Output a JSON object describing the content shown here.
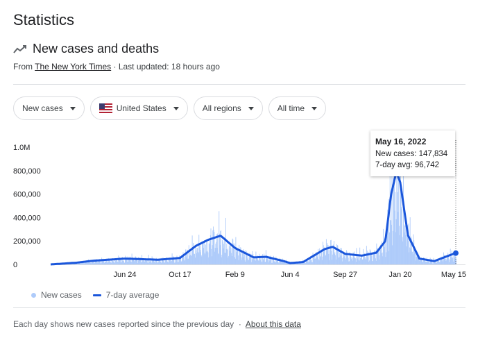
{
  "page": {
    "title": "Statistics"
  },
  "card": {
    "subtitle": "New cases and deaths",
    "source_prefix": "From ",
    "source_name": "The New York Times",
    "source_suffix": " · Last updated: 18 hours ago"
  },
  "filters": {
    "metric": "New cases",
    "country": "United States",
    "region": "All regions",
    "range": "All time"
  },
  "tooltip": {
    "date": "May 16, 2022",
    "cases": "New cases: 147,834",
    "avg": "7-day avg: 96,742"
  },
  "legend": {
    "new_cases": "New cases",
    "avg": "7-day average"
  },
  "footer": {
    "note": "Each day shows new cases reported since the previous day",
    "sep": "·",
    "link": "About this data"
  },
  "colors": {
    "bars": "#aecbfa",
    "line": "#1a56db",
    "text": "#202124"
  },
  "chart_data": {
    "type": "area",
    "x_dates": [
      "2020-01-21",
      "2020-03-15",
      "2020-04-15",
      "2020-06-24",
      "2020-09-01",
      "2020-10-17",
      "2020-11-20",
      "2020-12-15",
      "2021-01-10",
      "2021-02-09",
      "2021-03-20",
      "2021-04-15",
      "2021-05-20",
      "2021-06-04",
      "2021-07-01",
      "2021-08-15",
      "2021-09-01",
      "2021-09-27",
      "2021-11-01",
      "2021-12-01",
      "2021-12-20",
      "2022-01-01",
      "2022-01-12",
      "2022-01-20",
      "2022-02-05",
      "2022-03-01",
      "2022-04-01",
      "2022-05-15"
    ],
    "series": [
      {
        "name": "7-day average",
        "values": [
          0,
          15000,
          30000,
          50000,
          40000,
          55000,
          160000,
          210000,
          245000,
          140000,
          60000,
          65000,
          30000,
          12000,
          20000,
          130000,
          150000,
          90000,
          75000,
          100000,
          200000,
          600000,
          790000,
          700000,
          250000,
          50000,
          28000,
          96742
        ]
      }
    ],
    "xticks": [
      "Jun 24",
      "Oct 17",
      "Feb 9",
      "Jun 4",
      "Sep 27",
      "Jan 20",
      "May 15"
    ],
    "yticks": [
      "0",
      "200,000",
      "400,000",
      "600,000",
      "800,000",
      "1.0M"
    ],
    "ylim": [
      0,
      1000000
    ],
    "highlight": {
      "date": "2022-05-16",
      "new_cases": 147834,
      "avg": 96742
    }
  }
}
